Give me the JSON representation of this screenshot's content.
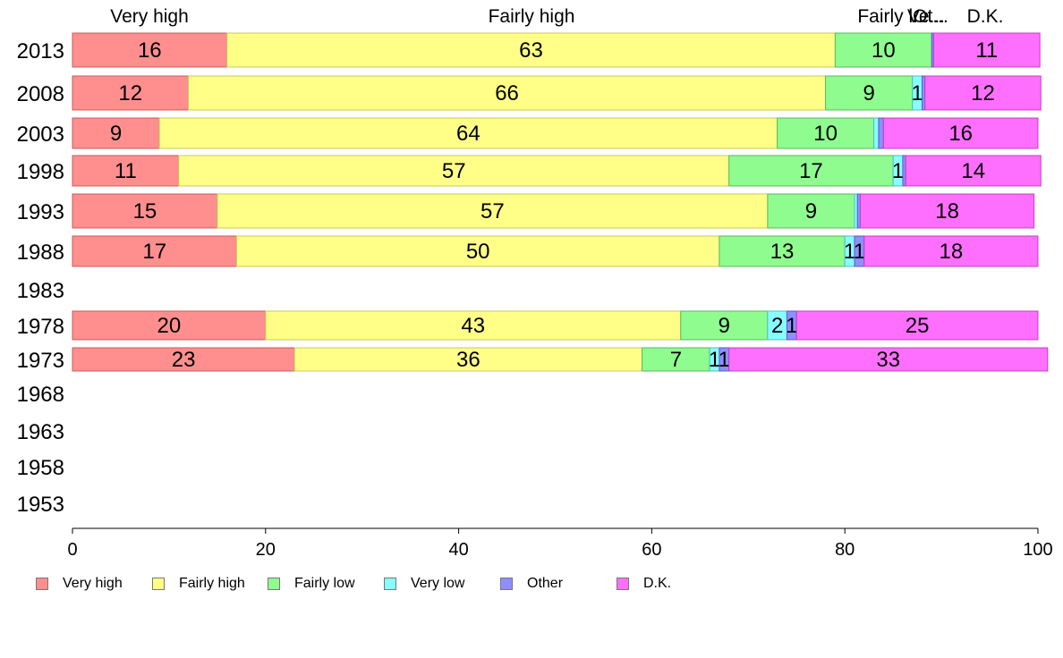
{
  "chart_data": {
    "type": "bar",
    "orientation": "horizontal",
    "stacked": true,
    "xlim": [
      0,
      100
    ],
    "x_ticks": [
      "0",
      "20",
      "40",
      "60",
      "80",
      "100"
    ],
    "top_labels": [
      "Very high",
      "Fairly high",
      "Fairly l...",
      "Ve...",
      "Ot...",
      "D.K."
    ],
    "categories": [
      "2013",
      "2008",
      "2003",
      "1998",
      "1993",
      "1988",
      "1983",
      "1978",
      "1973",
      "1968",
      "1963",
      "1958",
      "1953"
    ],
    "series": [
      {
        "name": "Very high",
        "color": "#ff8f8f",
        "border": "#cc5a5a",
        "values": [
          16,
          12,
          9,
          11,
          15,
          17,
          null,
          20,
          23,
          null,
          null,
          null,
          null
        ],
        "labels": [
          "16",
          "12",
          "9",
          "11",
          "15",
          "17",
          "",
          "20",
          "23",
          "",
          "",
          "",
          ""
        ]
      },
      {
        "name": "Fairly high",
        "color": "#ffff88",
        "border": "#c9c95a",
        "values": [
          63,
          66,
          64,
          57,
          57,
          50,
          null,
          43,
          36,
          null,
          null,
          null,
          null
        ],
        "labels": [
          "63",
          "66",
          "64",
          "57",
          "57",
          "50",
          "",
          "43",
          "36",
          "",
          "",
          "",
          ""
        ]
      },
      {
        "name": "Fairly low",
        "color": "#8ffc8f",
        "border": "#5aba5a",
        "values": [
          10,
          9,
          10,
          17,
          9,
          13,
          null,
          9,
          7,
          null,
          null,
          null,
          null
        ],
        "labels": [
          "10",
          "9",
          "10",
          "17",
          "9",
          "13",
          "",
          "9",
          "7",
          "",
          "",
          "",
          ""
        ]
      },
      {
        "name": "Very low",
        "color": "#88ffff",
        "border": "#4fbdbd",
        "values": [
          0,
          1,
          0.5,
          1,
          0.3,
          1,
          null,
          2,
          1,
          null,
          null,
          null,
          null
        ],
        "labels": [
          "",
          "1",
          "",
          "1",
          "",
          "1",
          "",
          "2",
          "1",
          "",
          "",
          "",
          ""
        ]
      },
      {
        "name": "Other",
        "color": "#8f8ffc",
        "border": "#5a5acc",
        "values": [
          0.2,
          0.3,
          0.5,
          0.3,
          0.3,
          1,
          null,
          1,
          1,
          null,
          null,
          null,
          null
        ],
        "labels": [
          "",
          "",
          "",
          "",
          "",
          "1",
          "",
          "1",
          "1",
          "",
          "",
          "",
          ""
        ]
      },
      {
        "name": "D.K.",
        "color": "#ff6fff",
        "border": "#c040c0",
        "values": [
          11,
          12,
          16,
          14,
          18,
          18,
          null,
          25,
          33,
          null,
          null,
          null,
          null
        ],
        "labels": [
          "11",
          "12",
          "16",
          "14",
          "18",
          "18",
          "",
          "25",
          "33",
          "",
          "",
          "",
          ""
        ]
      }
    ],
    "legend": {
      "position": "bottom",
      "items": [
        "Very high",
        "Fairly high",
        "Fairly low",
        "Very low",
        "Other",
        "D.K."
      ]
    },
    "grid": false
  }
}
